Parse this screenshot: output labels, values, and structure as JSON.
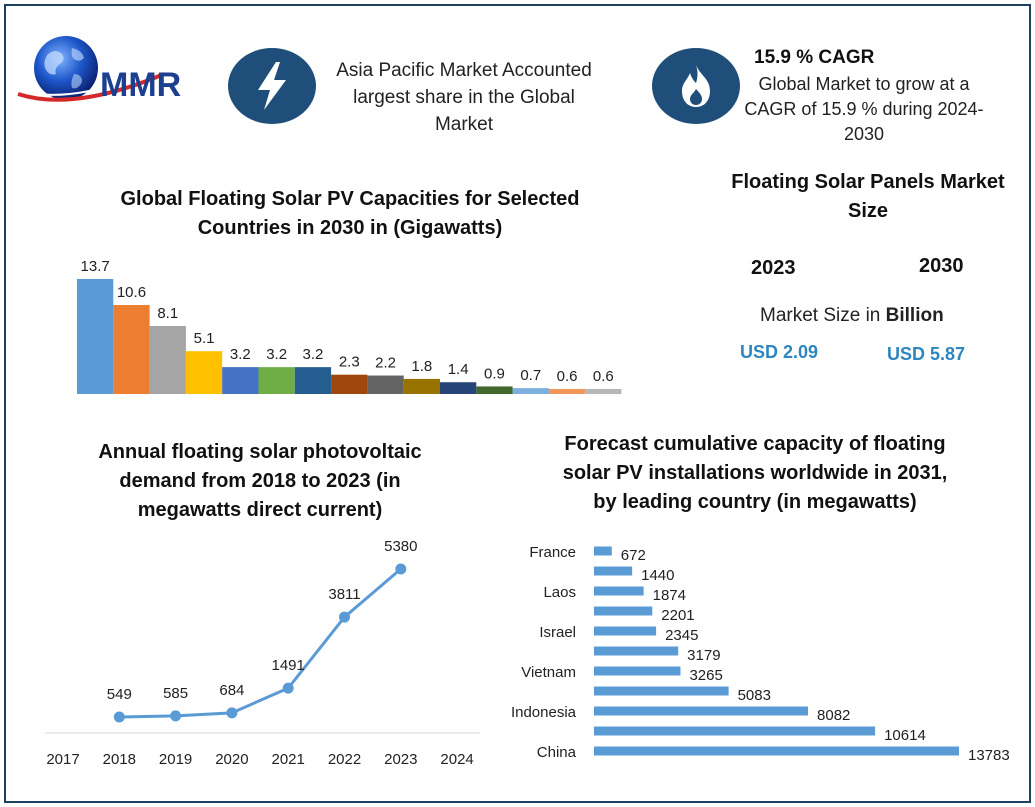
{
  "logo": {
    "text": "MMR"
  },
  "callout_left": {
    "icon": "lightning-bolt-icon",
    "lines": [
      "Asia Pacific Market Accounted",
      "largest share in the Global",
      "Market"
    ]
  },
  "callout_right": {
    "icon": "flame-icon",
    "title": "15.9 % CAGR",
    "lines": [
      "Global Market to grow at a",
      "CAGR of 15.9 % during 2024-",
      "2030"
    ]
  },
  "market_size": {
    "title_lines": [
      "Floating Solar Panels Market",
      "Size"
    ],
    "year_a": "2023",
    "year_b": "2030",
    "label_prefix": "Market Size in",
    "label_unit": "Billion",
    "value_a": "USD 2.09",
    "value_b": "USD 5.87"
  },
  "chart_data": [
    {
      "type": "bar",
      "title": "Global Floating Solar PV Capacities for Selected Countries in 2030 in (Gigawatts)",
      "title_lines": [
        "Global Floating Solar PV Capacities for Selected",
        "Countries in 2030 in (Gigawatts)"
      ],
      "values": [
        13.7,
        10.6,
        8.1,
        5.1,
        3.2,
        3.2,
        3.2,
        2.3,
        2.2,
        1.8,
        1.4,
        0.9,
        0.7,
        0.6,
        0.6
      ],
      "value_labels": [
        "13.7",
        "10.6",
        "8.1",
        "5.1",
        "3.2",
        "3.2",
        "3.2",
        "2.3",
        "2.2",
        "1.8",
        "1.4",
        "0.9",
        "0.7",
        "0.6",
        "0.6"
      ],
      "colors": [
        "#5b9bd5",
        "#ed7d31",
        "#a5a5a5",
        "#ffc000",
        "#4472c4",
        "#70ad47",
        "#255e91",
        "#9e480e",
        "#636363",
        "#997300",
        "#264478",
        "#43682b",
        "#7cafdd",
        "#f1975a",
        "#b7b7b7"
      ],
      "ylim": [
        0,
        13.7
      ]
    },
    {
      "type": "line",
      "title": "Annual floating solar photovoltaic demand from 2018 to 2023 (in megawatts direct current)",
      "title_lines": [
        "Annual floating solar photovoltaic",
        "demand from 2018 to 2023 (in",
        "megawatts direct current)"
      ],
      "x_ticks": [
        "2017",
        "2018",
        "2019",
        "2020",
        "2021",
        "2022",
        "2023",
        "2024"
      ],
      "x": [
        "2018",
        "2019",
        "2020",
        "2021",
        "2022",
        "2023"
      ],
      "values": [
        549,
        585,
        684,
        1491,
        3811,
        5380
      ],
      "value_labels": [
        "549",
        "585",
        "684",
        "1491",
        "3811",
        "5380"
      ],
      "color": "#5b9bd5"
    },
    {
      "type": "bar",
      "orientation": "horizontal",
      "title": "Forecast cumulative capacity of floating solar PV installations worldwide in 2031, by leading country (in megawatts)",
      "title_lines": [
        "Forecast cumulative capacity of floating",
        "solar PV installations worldwide in 2031,",
        "by leading country (in megawatts)"
      ],
      "categories": [
        "France",
        "",
        "Laos",
        "",
        "Israel",
        "",
        "Vietnam",
        "",
        "Indonesia",
        "",
        "China"
      ],
      "values": [
        672,
        1440,
        1874,
        2201,
        2345,
        3179,
        3265,
        5083,
        8082,
        10614,
        13783
      ],
      "value_labels": [
        "672",
        "1440",
        "1874",
        "2201",
        "2345",
        "3179",
        "3265",
        "5083",
        "8082",
        "10614",
        "13783"
      ],
      "color": "#5b9bd5",
      "xlim": [
        0,
        13783
      ]
    }
  ]
}
